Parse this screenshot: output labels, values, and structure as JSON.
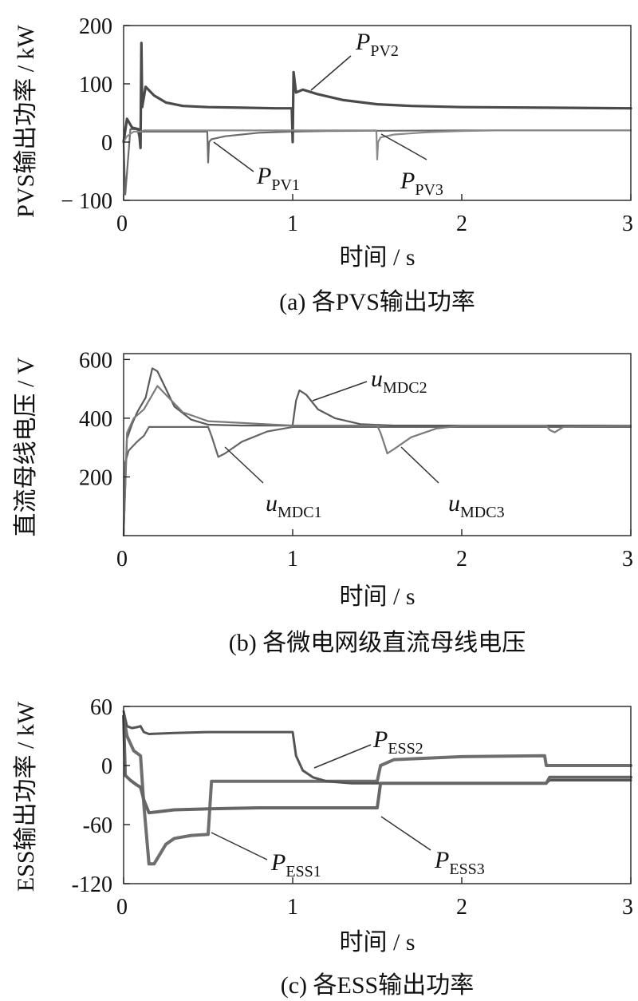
{
  "chart_data": [
    {
      "id": "a",
      "type": "line",
      "caption": "(a)  各PVS输出功率",
      "xlabel": "时间 / s",
      "ylabel": "PVS输出功率 / kW",
      "xlim": [
        0,
        3
      ],
      "ylim": [
        -100,
        200
      ],
      "xticks": [
        "0",
        "1",
        "2",
        "3"
      ],
      "yticks": [
        {
          "v": 200,
          "label": "200"
        },
        {
          "v": 100,
          "label": "100"
        },
        {
          "v": 0,
          "label": "0"
        },
        {
          "v": -100,
          "label": "− 100"
        }
      ],
      "colors": [
        "#6b6b6b",
        "#4a4a4a",
        "#8a8a8a"
      ],
      "series": [
        {
          "name": "P",
          "sub": "PV1",
          "width": 2.2,
          "color": "#6b6b6b",
          "x": [
            0,
            0.01,
            0.04,
            0.08,
            0.1,
            0.1,
            0.12,
            0.2,
            0.3,
            0.4,
            0.495,
            0.5,
            0.505,
            0.52,
            0.6,
            0.8,
            1.0,
            1.2,
            1.5,
            2.0,
            3.0
          ],
          "y": [
            0,
            -90,
            22,
            22,
            0,
            18,
            18,
            18,
            18,
            18,
            18,
            -35,
            0,
            5,
            10,
            16,
            18,
            19,
            19.5,
            20,
            20
          ]
        },
        {
          "name": "P",
          "sub": "PV2",
          "width": 3.2,
          "color": "#4a4a4a",
          "x": [
            0,
            0.02,
            0.05,
            0.09,
            0.1,
            0.105,
            0.11,
            0.13,
            0.18,
            0.25,
            0.35,
            0.5,
            0.7,
            0.9,
            0.995,
            1.0,
            1.005,
            1.02,
            1.06,
            1.15,
            1.3,
            1.5,
            1.7,
            2.0,
            2.5,
            3.0
          ],
          "y": [
            0,
            40,
            25,
            22,
            -10,
            170,
            60,
            95,
            80,
            68,
            62,
            60,
            59,
            58,
            58,
            0,
            120,
            85,
            90,
            82,
            72,
            65,
            62,
            60,
            59,
            58
          ]
        },
        {
          "name": "P",
          "sub": "PV3",
          "width": 2.2,
          "color": "#8a8a8a",
          "x": [
            0,
            0.02,
            0.06,
            0.1,
            0.12,
            0.3,
            0.5,
            1.0,
            1.495,
            1.5,
            1.505,
            1.52,
            1.6,
            1.8,
            2.0,
            2.2,
            3.0
          ],
          "y": [
            0,
            10,
            18,
            18,
            20,
            20,
            20,
            20,
            20,
            -30,
            0,
            8,
            13,
            17,
            19,
            20,
            20
          ]
        }
      ]
    },
    {
      "id": "b",
      "type": "line",
      "caption": "(b)  各微电网级直流母线电压",
      "xlabel": "时间 / s",
      "ylabel": "直流母线电压 / V",
      "xlim": [
        0,
        3
      ],
      "ylim": [
        0,
        620
      ],
      "xticks": [
        "0",
        "1",
        "2",
        "3"
      ],
      "yticks": [
        {
          "v": 600,
          "label": "600"
        },
        {
          "v": 400,
          "label": "400"
        },
        {
          "v": 200,
          "label": "200"
        }
      ],
      "series": [
        {
          "name": "u",
          "sub": "MDC1",
          "width": 2.2,
          "color": "#666666",
          "x": [
            0,
            0.01,
            0.03,
            0.08,
            0.1,
            0.12,
            0.15,
            0.2,
            0.3,
            0.5,
            0.52,
            0.56,
            0.6,
            0.7,
            0.85,
            1.0,
            1.5,
            2.5,
            3.0
          ],
          "y": [
            0,
            250,
            290,
            320,
            330,
            340,
            370,
            370,
            370,
            370,
            340,
            268,
            280,
            320,
            355,
            370,
            370,
            370,
            370
          ]
        },
        {
          "name": "u",
          "sub": "MDC2",
          "width": 2.2,
          "color": "#5a5a5a",
          "x": [
            0,
            0.02,
            0.05,
            0.08,
            0.1,
            0.13,
            0.17,
            0.2,
            0.25,
            0.3,
            0.4,
            0.5,
            0.7,
            0.9,
            0.995,
            1.0,
            1.02,
            1.04,
            1.08,
            1.15,
            1.25,
            1.4,
            1.6,
            2.0,
            3.0
          ],
          "y": [
            0,
            330,
            380,
            420,
            440,
            470,
            570,
            560,
            500,
            440,
            395,
            378,
            375,
            375,
            375,
            378,
            460,
            495,
            480,
            430,
            400,
            380,
            375,
            375,
            375
          ]
        },
        {
          "name": "u",
          "sub": "MDC3",
          "width": 2.2,
          "color": "#7a7a7a",
          "x": [
            0,
            0.02,
            0.06,
            0.12,
            0.16,
            0.2,
            0.25,
            0.35,
            0.5,
            1.0,
            1.5,
            1.52,
            1.56,
            1.6,
            1.7,
            1.85,
            2.0,
            2.5,
            2.52,
            2.55,
            2.6,
            3.0
          ],
          "y": [
            0,
            350,
            400,
            430,
            470,
            510,
            480,
            420,
            390,
            375,
            375,
            350,
            280,
            295,
            335,
            365,
            375,
            375,
            360,
            352,
            370,
            375
          ]
        }
      ]
    },
    {
      "id": "c",
      "type": "line",
      "caption": "(c)  各ESS输出功率",
      "xlabel": "时间 / s",
      "ylabel": "ESS输出功率 / kW",
      "xlim": [
        0,
        3
      ],
      "ylim": [
        -120,
        60
      ],
      "xticks": [
        "0",
        "1",
        "2",
        "3"
      ],
      "yticks": [
        {
          "v": 60,
          "label": "60"
        },
        {
          "v": 0,
          "label": "0"
        },
        {
          "v": -60,
          "label": "-60"
        },
        {
          "v": -120,
          "label": "-120"
        }
      ],
      "series": [
        {
          "name": "P",
          "sub": "ESS1",
          "width": 4.0,
          "color": "#6e6e6e",
          "x": [
            0,
            0.02,
            0.06,
            0.1,
            0.12,
            0.15,
            0.18,
            0.25,
            0.3,
            0.4,
            0.5,
            0.5,
            0.52,
            0.6,
            1.0,
            1.5,
            1.52,
            1.6,
            2.0,
            2.49,
            2.5,
            2.52,
            3.0
          ],
          "y": [
            50,
            30,
            15,
            10,
            -40,
            -100,
            -100,
            -80,
            -74,
            -71,
            -70,
            -70,
            -16,
            -16,
            -16,
            -16,
            0,
            6,
            9,
            10,
            0,
            0,
            0
          ]
        },
        {
          "name": "P",
          "sub": "ESS2",
          "width": 3.0,
          "color": "#555555",
          "x": [
            0,
            0.02,
            0.05,
            0.08,
            0.1,
            0.12,
            0.15,
            0.3,
            0.5,
            0.9,
            1.0,
            1.02,
            1.06,
            1.12,
            1.2,
            1.35,
            1.5,
            1.8,
            2.5,
            2.52,
            3.0
          ],
          "y": [
            55,
            40,
            38,
            39,
            40,
            34,
            32,
            33,
            34,
            34,
            34,
            10,
            -5,
            -12,
            -16,
            -18,
            -18,
            -18,
            -18,
            -15,
            -15
          ]
        },
        {
          "name": "P",
          "sub": "ESS3",
          "width": 4.0,
          "color": "#666666",
          "x": [
            0,
            0.01,
            0.04,
            0.08,
            0.1,
            0.12,
            0.15,
            0.2,
            0.3,
            0.5,
            0.8,
            1.0,
            1.3,
            1.5,
            1.52,
            1.6,
            2.0,
            2.5,
            2.52,
            3.0
          ],
          "y": [
            50,
            -10,
            -15,
            -20,
            -22,
            -35,
            -48,
            -47,
            -45,
            -44,
            -43,
            -43,
            -43,
            -43,
            -18,
            -18,
            -18,
            -18,
            -12,
            -12
          ]
        }
      ]
    }
  ]
}
